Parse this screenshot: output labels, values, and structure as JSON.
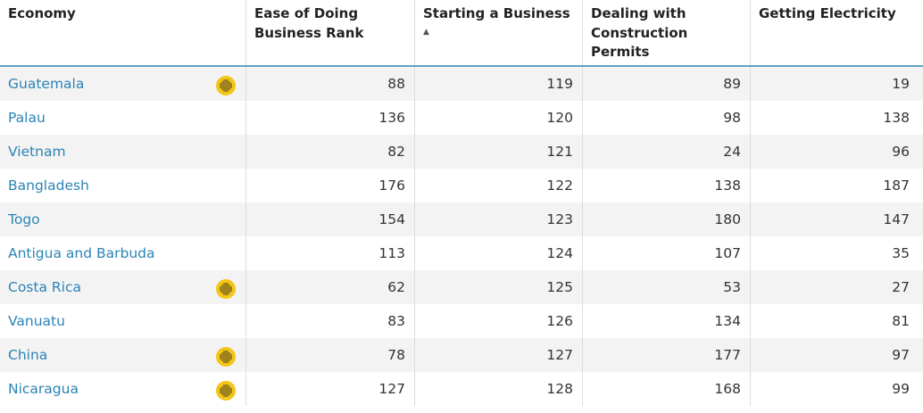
{
  "columns": [
    {
      "label": "Economy"
    },
    {
      "label": "Ease of Doing Business Rank"
    },
    {
      "label": "Starting a Business",
      "sort_indicator": "▲"
    },
    {
      "label": "Dealing with Construction Permits"
    },
    {
      "label": "Getting Electricity"
    }
  ],
  "icons": {
    "reform": "reform-dots-icon",
    "reform_color": "#f5c518"
  },
  "link_color": "#2b84b4",
  "header_rule_color": "#5ea3c4",
  "rows": [
    {
      "economy": "Guatemala",
      "reform": true,
      "ease": "88",
      "starting": "119",
      "construction": "89",
      "electricity": "19"
    },
    {
      "economy": "Palau",
      "reform": false,
      "ease": "136",
      "starting": "120",
      "construction": "98",
      "electricity": "138"
    },
    {
      "economy": "Vietnam",
      "reform": false,
      "ease": "82",
      "starting": "121",
      "construction": "24",
      "electricity": "96"
    },
    {
      "economy": "Bangladesh",
      "reform": false,
      "ease": "176",
      "starting": "122",
      "construction": "138",
      "electricity": "187"
    },
    {
      "economy": "Togo",
      "reform": false,
      "ease": "154",
      "starting": "123",
      "construction": "180",
      "electricity": "147"
    },
    {
      "economy": "Antigua and Barbuda",
      "reform": false,
      "ease": "113",
      "starting": "124",
      "construction": "107",
      "electricity": "35"
    },
    {
      "economy": "Costa Rica",
      "reform": true,
      "ease": "62",
      "starting": "125",
      "construction": "53",
      "electricity": "27"
    },
    {
      "economy": "Vanuatu",
      "reform": false,
      "ease": "83",
      "starting": "126",
      "construction": "134",
      "electricity": "81"
    },
    {
      "economy": "China",
      "reform": true,
      "ease": "78",
      "starting": "127",
      "construction": "177",
      "electricity": "97"
    },
    {
      "economy": "Nicaragua",
      "reform": true,
      "ease": "127",
      "starting": "128",
      "construction": "168",
      "electricity": "99"
    }
  ]
}
